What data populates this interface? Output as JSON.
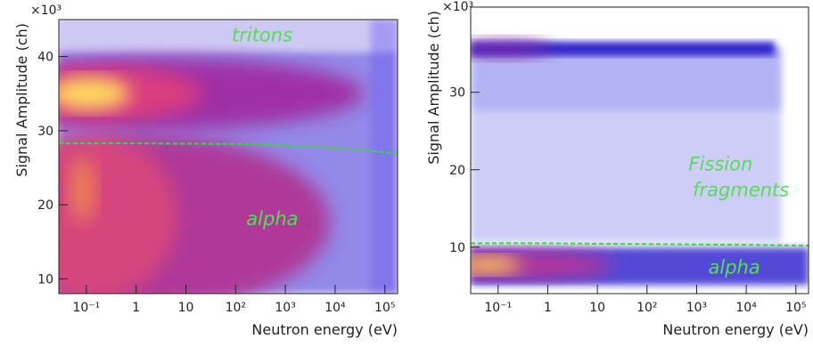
{
  "chart_data": [
    {
      "type": "heatmap",
      "xlabel": "Neutron energy (eV)",
      "ylabel": "Signal Amplitude (ch)",
      "y_multiplier": "×10³",
      "xscale": "log",
      "xlim": [
        0.028,
        180000
      ],
      "xticks": [
        {
          "value": 0.1,
          "label": "10⁻¹"
        },
        1,
        10,
        {
          "value": 100,
          "label": "10²"
        },
        {
          "value": 1000,
          "label": "10³"
        },
        {
          "value": 10000,
          "label": "10⁴"
        },
        {
          "value": 100000,
          "label": "10⁵"
        }
      ],
      "ylim": [
        8,
        45
      ],
      "yticks": [
        10,
        20,
        30,
        40
      ],
      "annotations": [
        "tritons",
        "alpha"
      ],
      "series": [
        {
          "color": "#3ed63e",
          "x": [
            0.028,
            1,
            100,
            1000,
            10000,
            50000,
            180000
          ],
          "values": [
            28.3,
            28.3,
            28.2,
            28.0,
            27.7,
            27.3,
            26.9
          ]
        }
      ]
    },
    {
      "type": "heatmap",
      "xlabel": "Neutron energy (eV)",
      "ylabel": "Signal Amplitude (ch)",
      "y_multiplier": "×10³",
      "xscale": "log",
      "xlim": [
        0.028,
        180000
      ],
      "xticks": [
        {
          "value": 0.1,
          "label": "10⁻¹"
        },
        1,
        10,
        {
          "value": 100,
          "label": "10²"
        },
        {
          "value": 1000,
          "label": "10³"
        },
        {
          "value": 10000,
          "label": "10⁴"
        },
        {
          "value": 100000,
          "label": "10⁵"
        }
      ],
      "ylim": [
        4,
        41
      ],
      "yticks": [
        10,
        20,
        30
      ],
      "annotations": [
        "Fission",
        "fragments",
        "alpha"
      ],
      "series": [
        {
          "color": "#3ed63e",
          "x": [
            0.028,
            1,
            100,
            10000,
            180000
          ],
          "values": [
            10.5,
            10.5,
            10.4,
            10.3,
            10.2
          ]
        }
      ]
    }
  ]
}
